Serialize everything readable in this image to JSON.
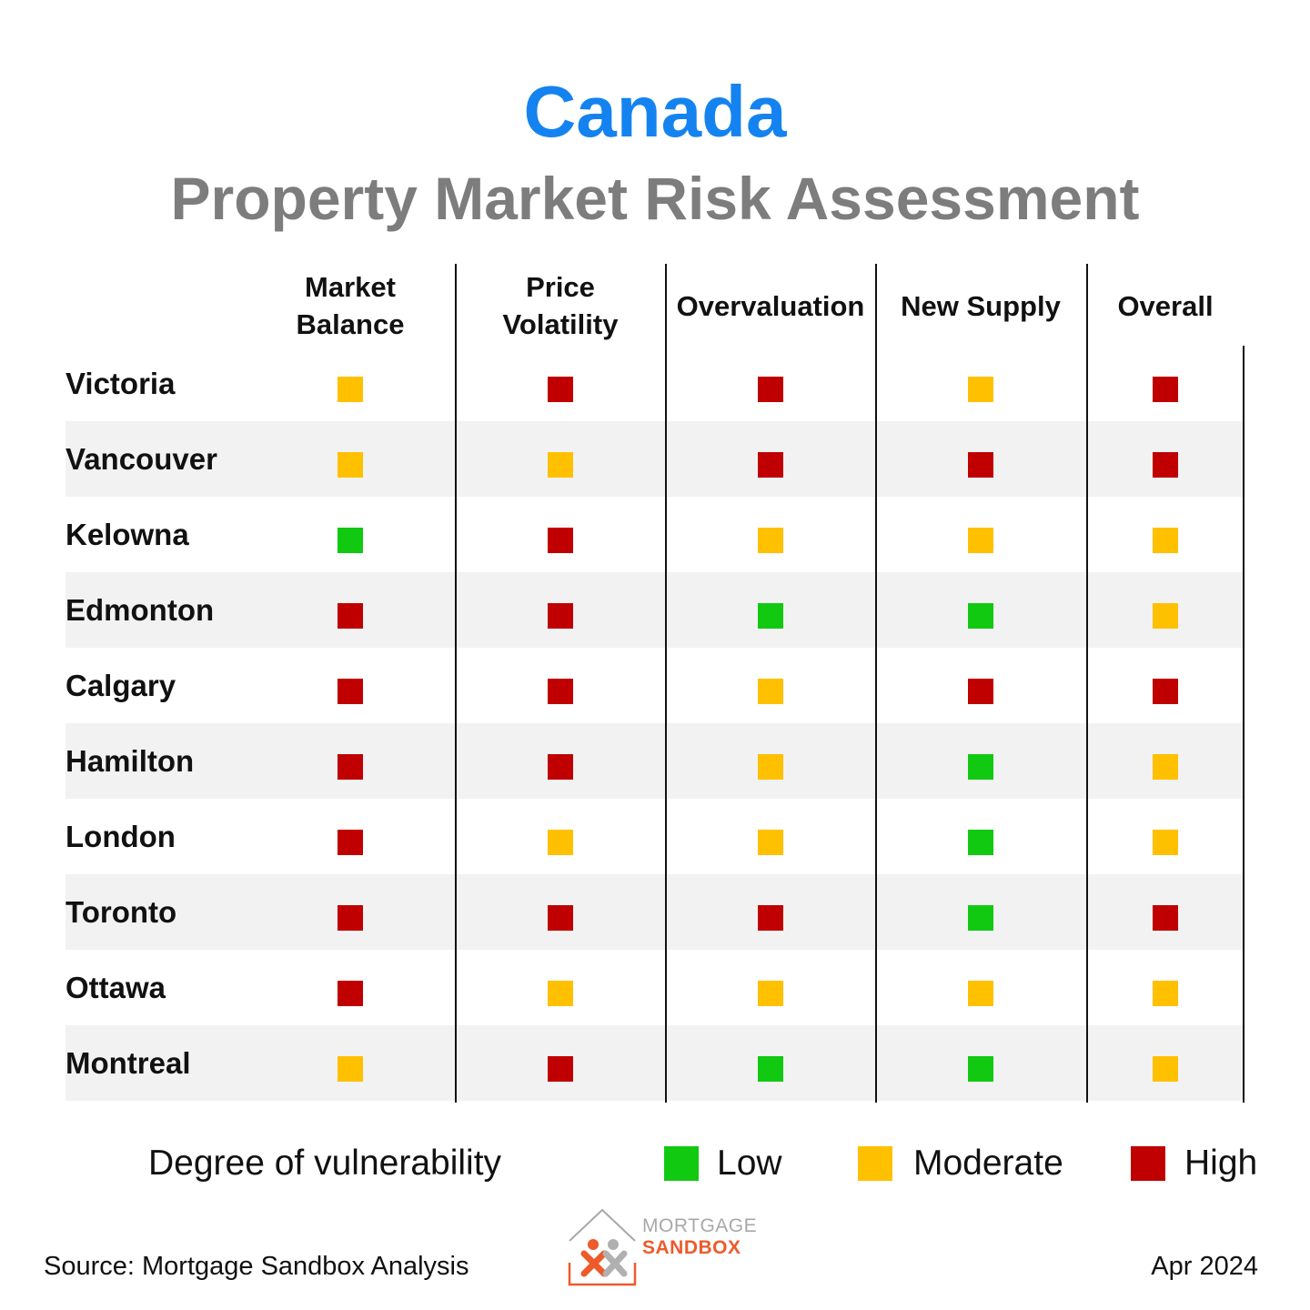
{
  "header": {
    "title": "Canada",
    "subtitle": "Property Market Risk Assessment"
  },
  "chart_data": {
    "type": "table",
    "title": "Canada",
    "subtitle": "Property Market Risk Assessment",
    "columns": [
      "Market\nBalance",
      "Price\nVolatility",
      "Overvaluation",
      "New Supply",
      "Overall"
    ],
    "rows": [
      {
        "label": "Victoria",
        "values": [
          "Moderate",
          "High",
          "High",
          "Moderate",
          "High"
        ]
      },
      {
        "label": "Vancouver",
        "values": [
          "Moderate",
          "Moderate",
          "High",
          "High",
          "High"
        ]
      },
      {
        "label": "Kelowna",
        "values": [
          "Low",
          "High",
          "Moderate",
          "Moderate",
          "Moderate"
        ]
      },
      {
        "label": "Edmonton",
        "values": [
          "High",
          "High",
          "Low",
          "Low",
          "Moderate"
        ]
      },
      {
        "label": "Calgary",
        "values": [
          "High",
          "High",
          "Moderate",
          "High",
          "High"
        ]
      },
      {
        "label": "Hamilton",
        "values": [
          "High",
          "High",
          "Moderate",
          "Low",
          "Moderate"
        ]
      },
      {
        "label": "London",
        "values": [
          "High",
          "Moderate",
          "Moderate",
          "Low",
          "Moderate"
        ]
      },
      {
        "label": "Toronto",
        "values": [
          "High",
          "High",
          "High",
          "Low",
          "High"
        ]
      },
      {
        "label": "Ottawa",
        "values": [
          "High",
          "Moderate",
          "Moderate",
          "Moderate",
          "Moderate"
        ]
      },
      {
        "label": "Montreal",
        "values": [
          "Moderate",
          "High",
          "Low",
          "Low",
          "Moderate"
        ]
      }
    ],
    "levels": {
      "Low": "#12c912",
      "Moderate": "#ffc000",
      "High": "#c00000"
    },
    "row_stripe_color": "#f2f2f2",
    "legend": {
      "title": "Degree of vulnerability",
      "items": [
        "Low",
        "Moderate",
        "High"
      ],
      "placement": "bottom"
    }
  },
  "footer": {
    "source": "Source: Mortgage Sandbox Analysis",
    "date": "Apr 2024",
    "logo_line1": "MORTGAGE",
    "logo_line2": "SANDBOX"
  },
  "colors": {
    "title": "#1483f0",
    "subtitle": "#7d7d7d",
    "logo_orange": "#ee5a2a",
    "logo_grey": "#a8a8a8"
  }
}
